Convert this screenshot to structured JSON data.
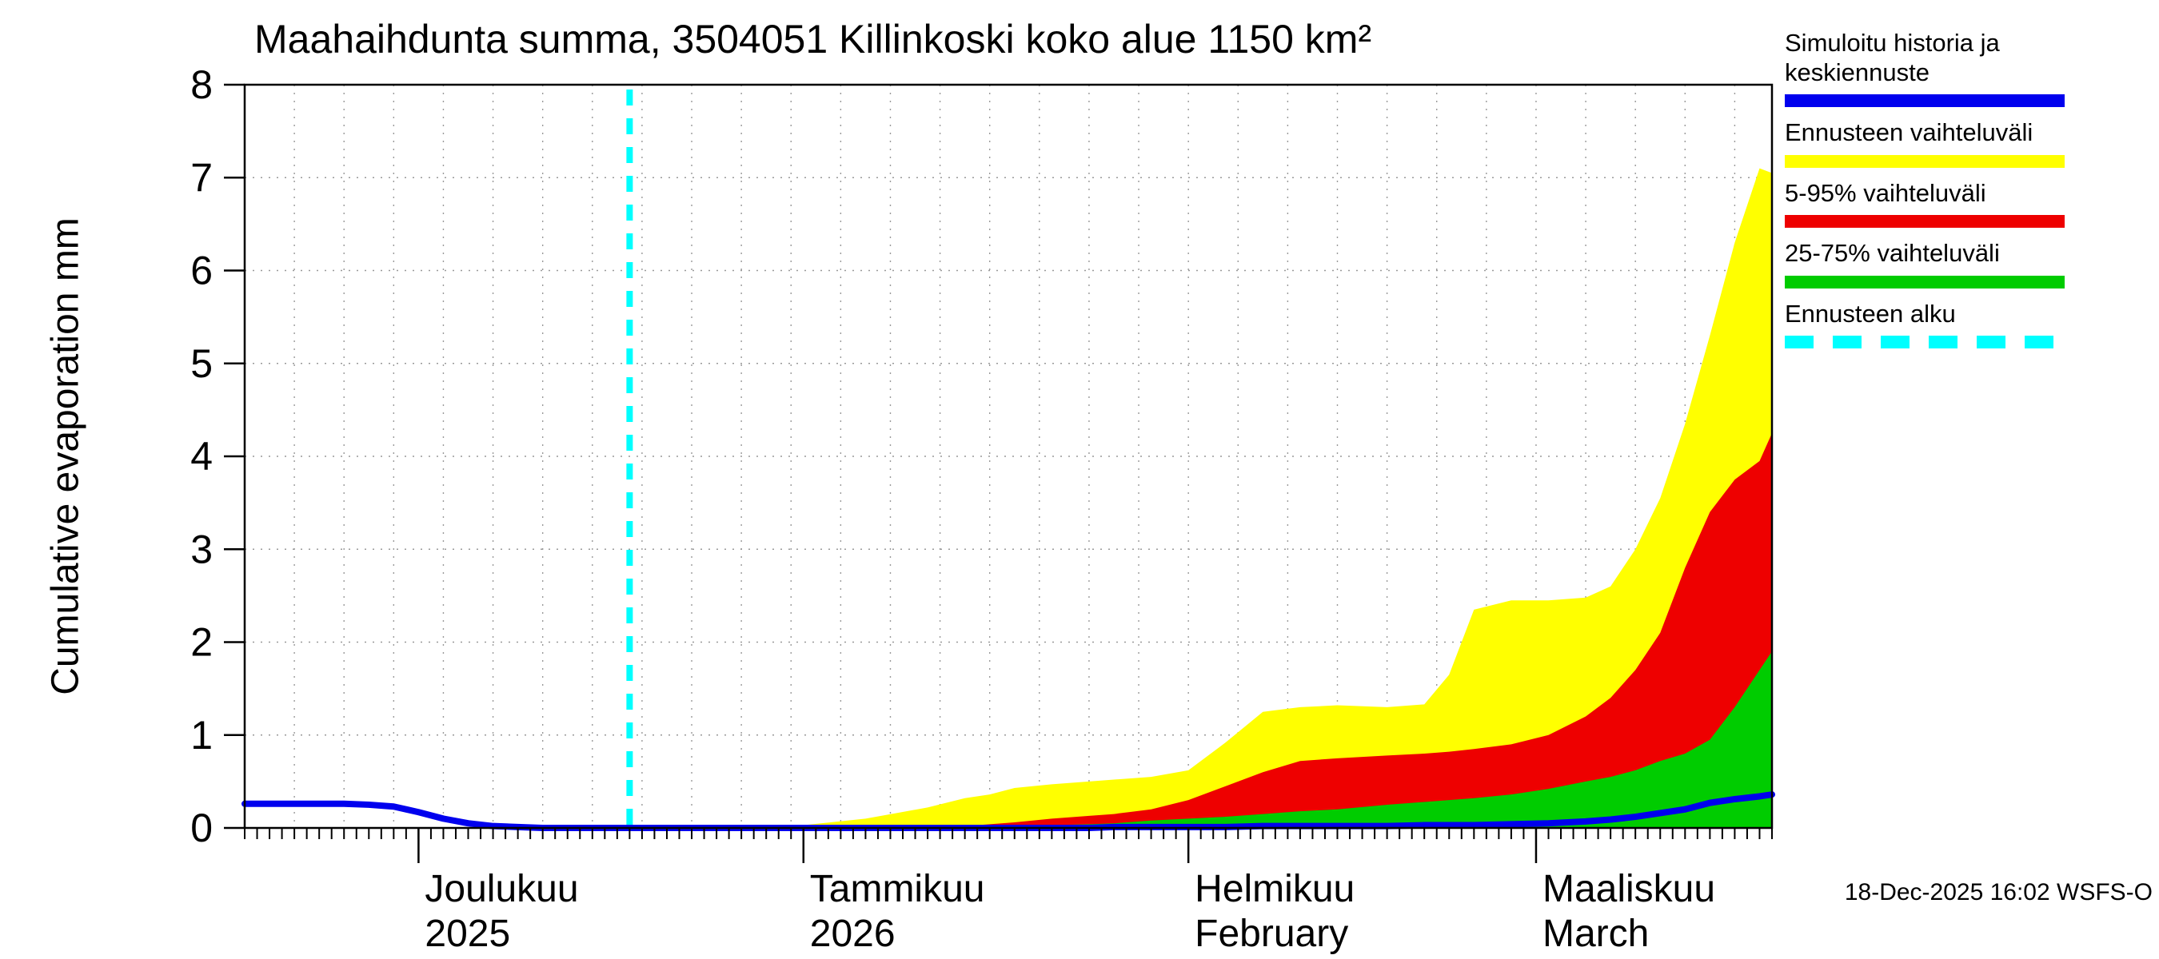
{
  "page": {
    "title": "Maahaihdunta summa, 3504051 Killinkoski koko alue 1150 km²",
    "y_axis_label": "Cumulative evaporation  mm",
    "timestamp": "18-Dec-2025 16:02 WSFS-O"
  },
  "legend": {
    "items": [
      {
        "label": "Simuloitu historia ja keskiennuste",
        "color": "#0000ee",
        "style": "solid"
      },
      {
        "label": "Ennusteen vaihteluväli",
        "color": "#ffff00",
        "style": "solid"
      },
      {
        "label": "5-95% vaihteluväli",
        "color": "#ee0000",
        "style": "solid"
      },
      {
        "label": "25-75% vaihteluväli",
        "color": "#00cc00",
        "style": "solid"
      },
      {
        "label": "Ennusteen alku",
        "color": "#00ffff",
        "style": "dashed"
      }
    ]
  },
  "chart_data": {
    "type": "area",
    "title": "Maahaihdunta summa, 3504051 Killinkoski koko alue 1150 km²",
    "ylabel": "Cumulative evaporation mm",
    "ylim": [
      0,
      8
    ],
    "y_ticks": [
      0,
      1,
      2,
      3,
      4,
      5,
      6,
      7,
      8
    ],
    "x_range_days": [
      0,
      123
    ],
    "forecast_start_day": 31,
    "grid": true,
    "legend_position": "right",
    "x_axis": {
      "month_ticks": [
        {
          "day": 14,
          "line1": "Joulukuu",
          "line2": "2025"
        },
        {
          "day": 45,
          "line1": "Tammikuu",
          "line2": "2026"
        },
        {
          "day": 76,
          "line1": "Helmikuu",
          "line2": "February"
        },
        {
          "day": 104,
          "line1": "Maaliskuu",
          "line2": "March"
        }
      ],
      "minor_tick_every_days": 1,
      "grid_every_days": 4
    },
    "x_days": [
      0,
      4,
      8,
      10,
      12,
      14,
      16,
      18,
      20,
      22,
      24,
      28,
      31,
      35,
      40,
      45,
      50,
      55,
      58,
      60,
      62,
      65,
      68,
      70,
      73,
      76,
      79,
      82,
      85,
      88,
      92,
      95,
      97,
      99,
      102,
      105,
      108,
      110,
      112,
      114,
      116,
      118,
      120,
      122,
      123
    ],
    "series": [
      {
        "name": "Ennusteen vaihteluväli",
        "role": "band_upper",
        "color": "#ffff00",
        "values": [
          0,
          0,
          0,
          0,
          0,
          0,
          0,
          0,
          0,
          0,
          0,
          0,
          0,
          0,
          0.01,
          0.03,
          0.1,
          0.22,
          0.32,
          0.36,
          0.43,
          0.47,
          0.5,
          0.52,
          0.55,
          0.62,
          0.92,
          1.25,
          1.3,
          1.32,
          1.3,
          1.33,
          1.65,
          2.35,
          2.45,
          2.45,
          2.48,
          2.6,
          3.0,
          3.55,
          4.35,
          5.3,
          6.3,
          7.1,
          7.05
        ]
      },
      {
        "name": "5-95% vaihteluväli",
        "role": "band_upper",
        "color": "#ee0000",
        "values": [
          0,
          0,
          0,
          0,
          0,
          0,
          0,
          0,
          0,
          0,
          0,
          0,
          0,
          0,
          0,
          0,
          0,
          0,
          0.02,
          0.04,
          0.06,
          0.1,
          0.13,
          0.15,
          0.2,
          0.3,
          0.45,
          0.6,
          0.72,
          0.75,
          0.78,
          0.8,
          0.82,
          0.85,
          0.9,
          1.0,
          1.2,
          1.4,
          1.7,
          2.1,
          2.8,
          3.4,
          3.75,
          3.95,
          4.25
        ]
      },
      {
        "name": "25-75% vaihteluväli",
        "role": "band_upper",
        "color": "#00cc00",
        "values": [
          0,
          0,
          0,
          0,
          0,
          0,
          0,
          0,
          0,
          0,
          0,
          0,
          0,
          0,
          0,
          0,
          0,
          0,
          0,
          0,
          0,
          0.03,
          0.04,
          0.05,
          0.08,
          0.1,
          0.12,
          0.15,
          0.18,
          0.2,
          0.25,
          0.28,
          0.3,
          0.32,
          0.36,
          0.42,
          0.5,
          0.55,
          0.62,
          0.72,
          0.8,
          0.95,
          1.3,
          1.7,
          1.9
        ]
      },
      {
        "name": "Simuloitu historia ja keskiennuste",
        "role": "line",
        "color": "#0000ee",
        "values": [
          0.26,
          0.26,
          0.26,
          0.25,
          0.23,
          0.17,
          0.1,
          0.05,
          0.02,
          0.01,
          0,
          0,
          0,
          0,
          0,
          0,
          0,
          0,
          0,
          0,
          0,
          0,
          0,
          0.01,
          0.01,
          0.01,
          0.01,
          0.02,
          0.02,
          0.02,
          0.02,
          0.03,
          0.03,
          0.03,
          0.04,
          0.05,
          0.07,
          0.09,
          0.12,
          0.16,
          0.2,
          0.27,
          0.31,
          0.34,
          0.36
        ]
      }
    ],
    "forecast_start_line": {
      "name": "Ennusteen alku",
      "color": "#00ffff",
      "style": "dashed"
    }
  }
}
